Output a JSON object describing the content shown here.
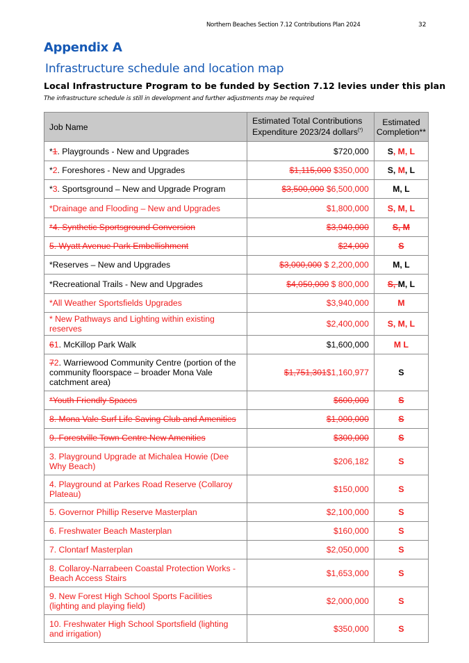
{
  "header": {
    "running_title": "Northern Beaches Section 7.12 Contributions  Plan 2024",
    "page_number": "32"
  },
  "appendix_title": "Appendix A",
  "section_title": "Infrastructure schedule and location map",
  "subtitle": "Local Infrastructure Program to be funded by Section 7.12 levies under this plan",
  "note": "The infrastructure schedule is still in development and further adjustments may be required",
  "colors": {
    "heading": "#1659b5",
    "tracked_change": "#f01c1c",
    "header_fill": "#c9c9c9"
  },
  "table": {
    "headers": {
      "job_name": "Job Name",
      "expenditure": "Estimated Total Contributions Expenditure 2023/24 dollars",
      "expenditure_sup": "(*)",
      "completion": "Estimated Completion**"
    },
    "rows": [
      {
        "name": [
          [
            "*",
            ""
          ],
          [
            "1",
            "d"
          ],
          [
            ". Playgrounds - New and Upgrades",
            ""
          ]
        ],
        "cost": [
          [
            "$720,000",
            ""
          ]
        ],
        "comp": [
          [
            "S",
            ""
          ],
          [
            ", M, L",
            "i"
          ]
        ],
        "h": 28
      },
      {
        "name": [
          [
            "*",
            ""
          ],
          [
            "2",
            "i"
          ],
          [
            ". Foreshores - New and Upgrades",
            ""
          ]
        ],
        "cost": [
          [
            "$1,115,000",
            "d"
          ],
          [
            " $350,000",
            "i"
          ]
        ],
        "comp": [
          [
            "S, ",
            ""
          ],
          [
            "M",
            "i"
          ],
          [
            ", L",
            ""
          ]
        ],
        "h": 27
      },
      {
        "name": [
          [
            "*",
            ""
          ],
          [
            "3",
            "i"
          ],
          [
            ". Sportsground – New and Upgrade Program",
            ""
          ]
        ],
        "cost": [
          [
            "$3,500,000",
            "d"
          ],
          [
            " $6,500,000",
            "i"
          ]
        ],
        "comp": [
          [
            "M, L",
            ""
          ]
        ],
        "h": 27
      },
      {
        "name": [
          [
            "*Drainage and Flooding – New and Upgrades",
            "i"
          ]
        ],
        "cost": [
          [
            "$1,800,000",
            "i"
          ]
        ],
        "comp": [
          [
            "S, M, L",
            "i"
          ]
        ],
        "h": 28
      },
      {
        "name": [
          [
            "*4. Synthetic Sportsground Conversion",
            "d"
          ]
        ],
        "cost": [
          [
            "$3,940,000",
            "d"
          ]
        ],
        "comp": [
          [
            "S, M",
            "d"
          ]
        ],
        "h": 27
      },
      {
        "name": [
          [
            "5. Wyatt Avenue Park Embellishment",
            "d"
          ]
        ],
        "cost": [
          [
            "$24,000",
            "d"
          ]
        ],
        "comp": [
          [
            "S",
            "d"
          ]
        ],
        "h": 27
      },
      {
        "name": [
          [
            "*Reserves – New and Upgrades",
            ""
          ]
        ],
        "cost": [
          [
            "$3,000,000",
            "d"
          ],
          [
            " $ 2,200,000",
            "i"
          ]
        ],
        "comp": [
          [
            "M, L",
            ""
          ]
        ],
        "h": 27
      },
      {
        "name": [
          [
            "*Recreational Trails - New and Upgrades",
            ""
          ]
        ],
        "cost": [
          [
            "$4,050,000",
            "d"
          ],
          [
            " $ 800,000",
            "i"
          ]
        ],
        "comp": [
          [
            "S, ",
            "d"
          ],
          [
            "M, L",
            ""
          ]
        ],
        "h": 28
      },
      {
        "name": [
          [
            "*All Weather Sportsfields Upgrades",
            "i"
          ]
        ],
        "cost": [
          [
            "$3,940,000",
            "i"
          ]
        ],
        "comp": [
          [
            "M",
            "i"
          ]
        ],
        "h": 27
      },
      {
        "name": [
          [
            "* New Pathways and Lighting within existing reserves",
            "i"
          ]
        ],
        "cost": [
          [
            "$2,400,000",
            "i"
          ]
        ],
        "comp": [
          [
            "S, M, L",
            "i"
          ]
        ],
        "h": 27
      },
      {
        "name": [
          [
            "6",
            "d"
          ],
          [
            "1",
            "i"
          ],
          [
            ". McKillop Park Walk",
            ""
          ]
        ],
        "cost": [
          [
            "$1,600,000",
            ""
          ]
        ],
        "comp": [
          [
            "M L",
            "i"
          ]
        ],
        "h": 27
      },
      {
        "name": [
          [
            "7",
            "d"
          ],
          [
            "2",
            "i"
          ],
          [
            ". Warriewood Community Centre (portion of the community floorspace – broader Mona Vale catchment area)",
            ""
          ]
        ],
        "cost": [
          [
            "$1,751,301",
            "d"
          ],
          [
            "$1,160,977",
            "i"
          ]
        ],
        "comp": [
          [
            "S",
            ""
          ]
        ],
        "h": 53
      },
      {
        "name": [
          [
            "*Youth Friendly Spaces",
            "d"
          ]
        ],
        "cost": [
          [
            "$600,000",
            "d"
          ]
        ],
        "comp": [
          [
            "S",
            "d"
          ]
        ],
        "h": 27
      },
      {
        "name": [
          [
            "8. Mona Vale Surf Life Saving Club and Amenities",
            "d"
          ]
        ],
        "cost": [
          [
            "$1,000,000",
            "d"
          ]
        ],
        "comp": [
          [
            "S",
            "d"
          ]
        ],
        "h": 27
      },
      {
        "name": [
          [
            "9. Forestville Town Centre New Amenities",
            "d"
          ]
        ],
        "cost": [
          [
            "$300,000",
            "d"
          ]
        ],
        "comp": [
          [
            "S",
            "d"
          ]
        ],
        "h": 27
      },
      {
        "name": [
          [
            "3. Playground Upgrade at Michalea Howie (Dee Why Beach)",
            "i"
          ]
        ],
        "cost": [
          [
            "$206,182",
            "i"
          ]
        ],
        "comp": [
          [
            "S",
            "i"
          ]
        ],
        "h": 40
      },
      {
        "name": [
          [
            "4. Playground at Parkes Road Reserve (Collaroy Plateau)",
            "i"
          ]
        ],
        "cost": [
          [
            "$150,000",
            "i"
          ]
        ],
        "comp": [
          [
            "S",
            "i"
          ]
        ],
        "h": 40
      },
      {
        "name": [
          [
            "5. Governor Phillip Reserve Masterplan",
            "i"
          ]
        ],
        "cost": [
          [
            "$2,100,000",
            "i"
          ]
        ],
        "comp": [
          [
            "S",
            "i"
          ]
        ],
        "h": 27
      },
      {
        "name": [
          [
            "6. Freshwater Beach Masterplan",
            "i"
          ]
        ],
        "cost": [
          [
            "$160,000",
            "i"
          ]
        ],
        "comp": [
          [
            "S",
            "i"
          ]
        ],
        "h": 27
      },
      {
        "name": [
          [
            "7. Clontarf Masterplan",
            "i"
          ]
        ],
        "cost": [
          [
            "$2,050,000",
            "i"
          ]
        ],
        "comp": [
          [
            "S",
            "i"
          ]
        ],
        "h": 27
      },
      {
        "name": [
          [
            "8. Collaroy-Narrabeen Coastal Protection Works - Beach Access Stairs",
            "i"
          ]
        ],
        "cost": [
          [
            "$1,653,000",
            "i"
          ]
        ],
        "comp": [
          [
            "S",
            "i"
          ]
        ],
        "h": 40
      },
      {
        "name": [
          [
            "9. New Forest High School Sports Facilities (lighting and playing field)",
            "i"
          ]
        ],
        "cost": [
          [
            "$2,000,000",
            "i"
          ]
        ],
        "comp": [
          [
            "S",
            "i"
          ]
        ],
        "h": 40
      },
      {
        "name": [
          [
            "10. Freshwater High School Sportsfield (lighting and irrigation)",
            "i"
          ]
        ],
        "cost": [
          [
            "$350,000",
            "i"
          ]
        ],
        "comp": [
          [
            "S",
            "i"
          ]
        ],
        "h": 40
      }
    ]
  }
}
